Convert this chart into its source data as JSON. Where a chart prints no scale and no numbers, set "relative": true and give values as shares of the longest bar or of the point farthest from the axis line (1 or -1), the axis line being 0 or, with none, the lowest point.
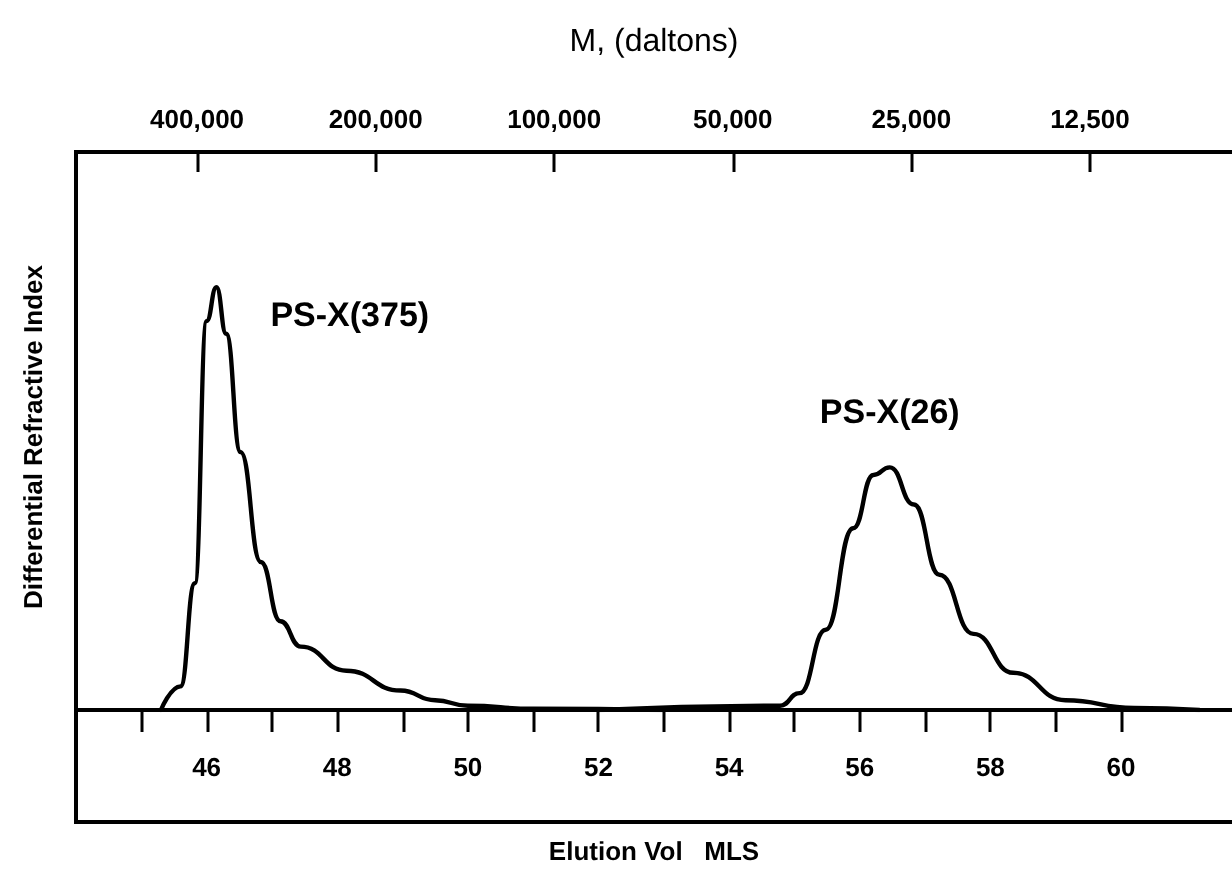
{
  "chart_data": {
    "type": "line",
    "relative": true,
    "xlabel": "Elution Vol   MLS",
    "ylabel": "Differential Refractive Index",
    "x2label": "M, (daltons)",
    "xlim": [
      44,
      61.7
    ],
    "xticks": [
      {
        "value": 45,
        "label": null
      },
      46,
      {
        "value": 47,
        "label": null
      },
      48,
      {
        "value": 49,
        "label": null
      },
      50,
      {
        "value": 51,
        "label": null
      },
      52,
      {
        "value": 53,
        "label": null
      },
      54,
      {
        "value": 55,
        "label": null
      },
      56,
      {
        "value": 57,
        "label": null
      },
      58,
      {
        "value": 59,
        "label": null
      },
      60
    ],
    "x2lim": [
      640000,
      7200
    ],
    "x2ticks": [
      {
        "value": 400000,
        "label": "400,000"
      },
      {
        "value": 200000,
        "label": "200,000"
      },
      {
        "value": 100000,
        "label": "100,000"
      },
      {
        "value": 50000,
        "label": "50,000"
      },
      {
        "value": 25000,
        "label": "25,000"
      },
      {
        "value": 12500,
        "label": "12,500"
      }
    ],
    "log": "x2",
    "marker": "none",
    "line_style": "solid",
    "grid": false,
    "legend": false,
    "series": [
      {
        "name": "PS-X(375)",
        "color": "#000000",
        "x": [
          45.3,
          45.6,
          45.82,
          46.0,
          46.15,
          46.3,
          46.52,
          46.83,
          47.13,
          47.44,
          48.14,
          48.97,
          49.5,
          50.0,
          51.0,
          53.0
        ],
        "values": [
          0,
          0.056,
          0.3,
          0.92,
          1.0,
          0.89,
          0.61,
          0.35,
          0.21,
          0.15,
          0.093,
          0.046,
          0.023,
          0.01,
          0.003,
          0
        ]
      },
      {
        "name": "PS-X(26)",
        "color": "#000000",
        "x": [
          52.0,
          54.78,
          55.08,
          55.48,
          55.9,
          56.21,
          56.46,
          56.83,
          57.22,
          57.74,
          58.35,
          59.15,
          60.2,
          61.2
        ],
        "values": [
          0,
          0.01,
          0.04,
          0.19,
          0.43,
          0.556,
          0.574,
          0.486,
          0.32,
          0.18,
          0.088,
          0.023,
          0.005,
          0
        ]
      }
    ]
  }
}
